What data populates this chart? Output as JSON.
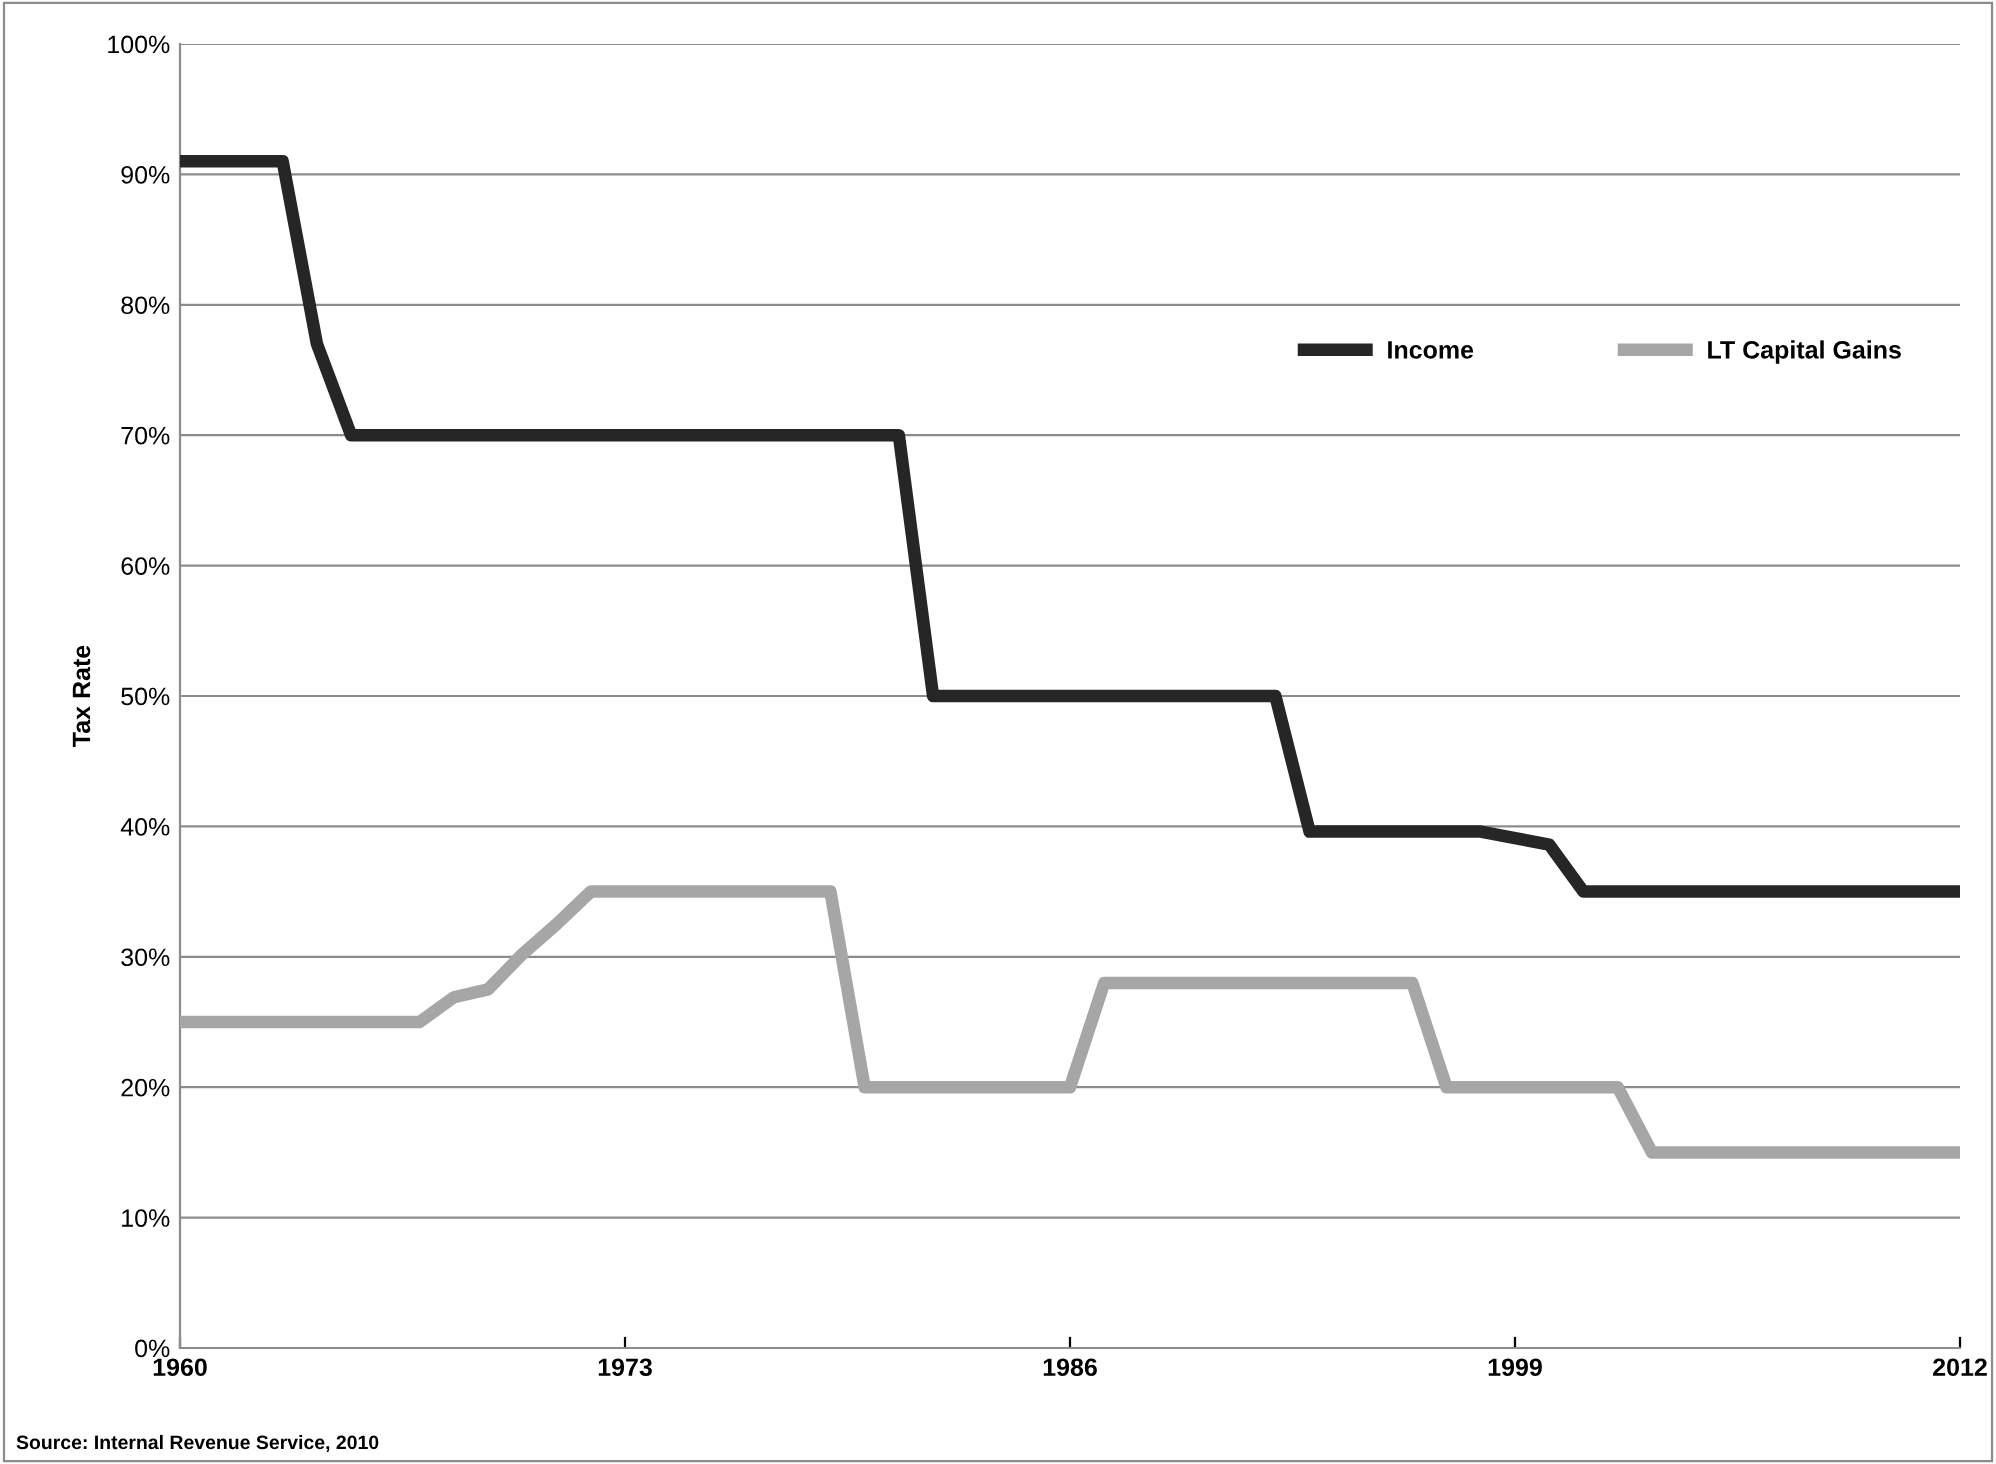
{
  "chart_data": {
    "type": "line",
    "ylabel": "Tax Rate",
    "x": [
      1960,
      1961,
      1962,
      1963,
      1964,
      1965,
      1966,
      1967,
      1968,
      1969,
      1970,
      1971,
      1972,
      1973,
      1974,
      1975,
      1976,
      1977,
      1978,
      1979,
      1980,
      1981,
      1982,
      1983,
      1984,
      1985,
      1986,
      1987,
      1988,
      1989,
      1990,
      1991,
      1992,
      1993,
      1994,
      1995,
      1996,
      1997,
      1998,
      1999,
      2000,
      2001,
      2002,
      2003,
      2004,
      2005,
      2006,
      2007,
      2008,
      2009,
      2010,
      2011,
      2012
    ],
    "series": [
      {
        "name": "Income",
        "color": "#262626",
        "values": [
          91,
          91,
          91,
          91,
          77,
          70,
          70,
          70,
          70,
          70,
          70,
          70,
          70,
          70,
          70,
          70,
          70,
          70,
          70,
          70,
          70,
          70,
          50,
          50,
          50,
          50,
          50,
          50,
          50,
          50,
          50,
          50,
          50,
          39.6,
          39.6,
          39.6,
          39.6,
          39.6,
          39.6,
          39.1,
          38.6,
          35,
          35,
          35,
          35,
          35,
          35,
          35,
          35,
          35,
          35,
          35,
          35
        ]
      },
      {
        "name": "LT Capital Gains",
        "color": "#a6a6a6",
        "values": [
          25,
          25,
          25,
          25,
          25,
          25,
          25,
          25,
          26.9,
          27.5,
          30.2,
          32.5,
          35,
          35,
          35,
          35,
          35,
          35,
          35,
          35,
          20,
          20,
          20,
          20,
          20,
          20,
          20,
          28,
          28,
          28,
          28,
          28,
          28,
          28,
          28,
          28,
          28,
          20,
          20,
          20,
          20,
          20,
          20,
          15,
          15,
          15,
          15,
          15,
          15,
          15,
          15,
          15,
          15
        ]
      }
    ],
    "xlim": [
      1960,
      2012
    ],
    "xticks": [
      1960,
      1973,
      1986,
      1999,
      2012
    ],
    "ylim": [
      0,
      100
    ],
    "yticks": [
      {
        "value": 0,
        "label": "0%"
      },
      {
        "value": 10,
        "label": "10%"
      },
      {
        "value": 20,
        "label": "20%"
      },
      {
        "value": 30,
        "label": "30%"
      },
      {
        "value": 40,
        "label": "40%"
      },
      {
        "value": 50,
        "label": "50%"
      },
      {
        "value": 60,
        "label": "60%"
      },
      {
        "value": 70,
        "label": "70%"
      },
      {
        "value": 80,
        "label": "80%"
      },
      {
        "value": 90,
        "label": "90%"
      },
      {
        "value": 100,
        "label": "100%"
      }
    ],
    "grid": "y",
    "legend": "top right",
    "line_style": "solid",
    "marker": "none",
    "annotations": [
      "Source: Internal Revenue Service, 2010"
    ]
  }
}
